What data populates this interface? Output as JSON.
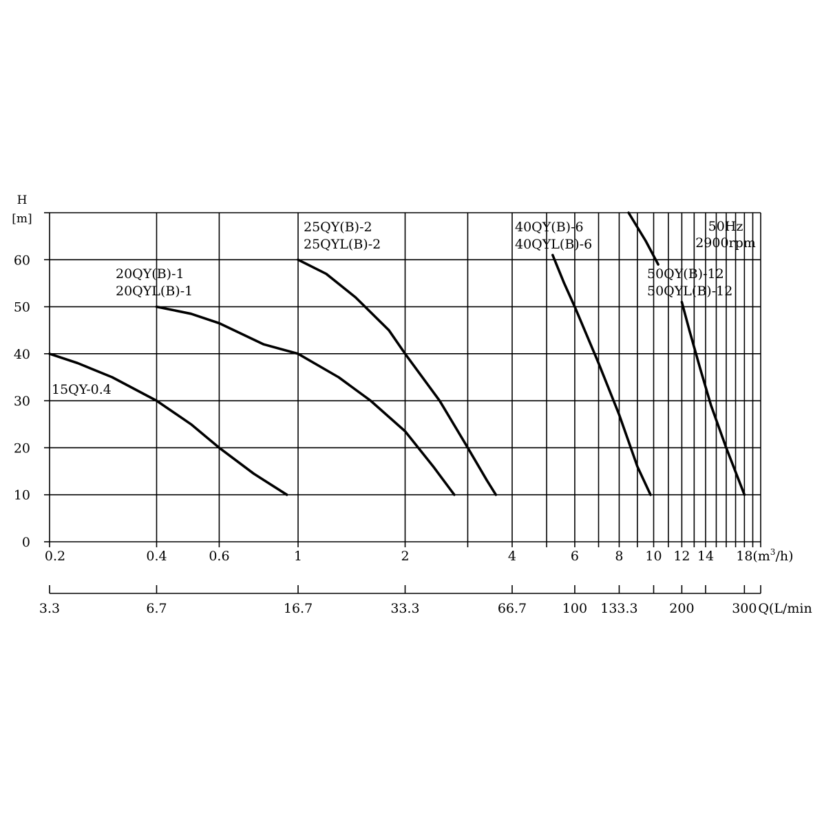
{
  "chart_data": {
    "type": "line",
    "x_scale": "log",
    "xlim": [
      0.2,
      20
    ],
    "ylim": [
      0,
      70
    ],
    "grid": true,
    "ylabel_lines": [
      "H",
      "[m]"
    ],
    "y_ticks": [
      0,
      10,
      20,
      30,
      40,
      50,
      60
    ],
    "x_ticks": [
      {
        "v": 0.2,
        "label": "0.2"
      },
      {
        "v": 0.4,
        "label": "0.4"
      },
      {
        "v": 0.6,
        "label": "0.6"
      },
      {
        "v": 1,
        "label": "1"
      },
      {
        "v": 2,
        "label": "2"
      },
      {
        "v": 4,
        "label": "4"
      },
      {
        "v": 6,
        "label": "6"
      },
      {
        "v": 8,
        "label": "8"
      },
      {
        "v": 10,
        "label": "10"
      },
      {
        "v": 12,
        "label": "12"
      },
      {
        "v": 14,
        "label": "14"
      },
      {
        "v": 18,
        "label": "18"
      }
    ],
    "x_unit_label": {
      "main": "(m",
      "sup": "3",
      "tail": "/h)"
    },
    "x2_ticks": [
      {
        "v": 0.2,
        "label": "3.3"
      },
      {
        "v": 0.4,
        "label": "6.7"
      },
      {
        "v": 1,
        "label": "16.7"
      },
      {
        "v": 2,
        "label": "33.3"
      },
      {
        "v": 4,
        "label": "66.7"
      },
      {
        "v": 6,
        "label": "100"
      },
      {
        "v": 8,
        "label": "133.3"
      },
      {
        "v": 12,
        "label": "200"
      },
      {
        "v": 18,
        "label": "300"
      }
    ],
    "x2_extra_ticks": [
      10,
      14,
      20
    ],
    "x2_label": "Q(L/min)",
    "vgrid": [
      0.2,
      0.4,
      0.6,
      1,
      2,
      3,
      4,
      5,
      6,
      7,
      8,
      9,
      10,
      11,
      12,
      13,
      14,
      15,
      16,
      17,
      18,
      19,
      20
    ],
    "hgrid": [
      0,
      10,
      20,
      30,
      40,
      50,
      60,
      70
    ],
    "info_lines": [
      "50Hz",
      "2900rpm"
    ],
    "series": [
      {
        "name": "15QY-0.4",
        "labels": [
          "15QY-0.4"
        ],
        "points": [
          [
            0.2,
            40
          ],
          [
            0.24,
            38
          ],
          [
            0.3,
            35
          ],
          [
            0.4,
            30
          ],
          [
            0.5,
            25
          ],
          [
            0.6,
            20
          ],
          [
            0.75,
            14.5
          ],
          [
            0.93,
            10
          ]
        ]
      },
      {
        "name": "20QY(B)-1",
        "labels": [
          "20QY(B)-1",
          "20QYL(B)-1"
        ],
        "points": [
          [
            0.4,
            50
          ],
          [
            0.5,
            48.5
          ],
          [
            0.6,
            46.5
          ],
          [
            0.8,
            42
          ],
          [
            1.0,
            40
          ],
          [
            1.3,
            35
          ],
          [
            1.6,
            30
          ],
          [
            2.0,
            23.5
          ],
          [
            2.4,
            16
          ],
          [
            2.75,
            10
          ]
        ]
      },
      {
        "name": "25QY(B)-2",
        "labels": [
          "25QY(B)-2",
          "25QYL(B)-2"
        ],
        "points": [
          [
            1.0,
            60
          ],
          [
            1.2,
            57
          ],
          [
            1.45,
            52
          ],
          [
            1.8,
            45
          ],
          [
            2.0,
            40
          ],
          [
            2.5,
            30
          ],
          [
            3.0,
            20
          ],
          [
            3.4,
            13
          ],
          [
            3.6,
            10
          ]
        ]
      },
      {
        "name": "40QY(B)-6",
        "labels": [
          "40QY(B)-6",
          "40QYL(B)-6"
        ],
        "points": [
          [
            5.2,
            61
          ],
          [
            5.6,
            55
          ],
          [
            6.0,
            50
          ],
          [
            7.0,
            38
          ],
          [
            8.0,
            27
          ],
          [
            9.0,
            16
          ],
          [
            9.8,
            10
          ]
        ]
      },
      {
        "name": "50QY(B)-12",
        "labels": [
          "50QY(B)-12",
          "50QYL(B)-12"
        ],
        "points": [
          [
            8.5,
            70
          ],
          [
            9.5,
            64
          ],
          [
            10.3,
            59
          ]
        ]
      },
      {
        "name": "50QY(B)-12 (lower)",
        "labels": [],
        "points": [
          [
            12.0,
            51
          ],
          [
            12.6,
            45
          ],
          [
            13.5,
            37
          ],
          [
            14.5,
            29
          ],
          [
            16.0,
            20
          ],
          [
            18.0,
            10
          ]
        ]
      }
    ]
  }
}
